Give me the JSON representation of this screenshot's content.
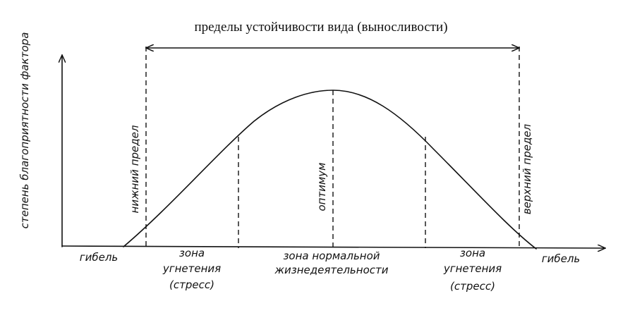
{
  "title": "пределы устойчивости вида (выносливости)",
  "y_axis_label": "степень благоприятности фактора",
  "limits": [
    {
      "label": "нижний предел"
    },
    {
      "label": "оптимум"
    },
    {
      "label": "верхний предел"
    }
  ],
  "zones": [
    {
      "lines": [
        "гибель"
      ]
    },
    {
      "lines": [
        "зона",
        "угнетения",
        "(стресс)"
      ]
    },
    {
      "lines": [
        "зона нормальной",
        "жизнедеятельности"
      ]
    },
    {
      "lines": [
        "зона",
        "угнетения",
        "(стресс)"
      ]
    },
    {
      "lines": [
        "гибель"
      ]
    }
  ]
}
